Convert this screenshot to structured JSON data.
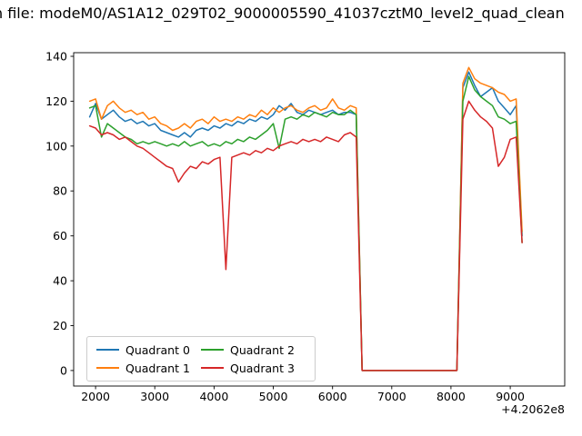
{
  "chart_data": {
    "type": "line",
    "title": "n file: modeM0/AS1A12_029T02_9000005590_41037cztM0_level2_quad_clean",
    "xlabel": "",
    "ylabel": "",
    "x_offset": "+4.2062e8",
    "xlim": [
      1630,
      9920
    ],
    "ylim": [
      -6.9,
      141.6
    ],
    "x_ticks": [
      2000,
      3000,
      4000,
      5000,
      6000,
      7000,
      8000,
      9000
    ],
    "y_ticks": [
      0,
      20,
      40,
      60,
      80,
      100,
      120,
      140
    ],
    "grid": false,
    "legend": {
      "position": "lower left",
      "ncols": 2
    },
    "x": [
      1900,
      2000,
      2100,
      2200,
      2300,
      2400,
      2500,
      2600,
      2700,
      2800,
      2900,
      3000,
      3100,
      3200,
      3300,
      3400,
      3500,
      3600,
      3700,
      3800,
      3900,
      4000,
      4100,
      4200,
      4300,
      4400,
      4500,
      4600,
      4700,
      4800,
      4900,
      5000,
      5100,
      5200,
      5300,
      5400,
      5500,
      5600,
      5700,
      5800,
      5900,
      6000,
      6100,
      6200,
      6300,
      6400,
      6500,
      6600,
      6700,
      6800,
      6900,
      7000,
      7100,
      7200,
      7300,
      7400,
      7500,
      7600,
      7700,
      7800,
      7900,
      8000,
      8100,
      8200,
      8300,
      8400,
      8500,
      8600,
      8700,
      8800,
      8900,
      9000,
      9100,
      9200
    ],
    "series": [
      {
        "name": "Quadrant 0",
        "color": "#1f77b4",
        "values": [
          113,
          119,
          112,
          114,
          116,
          113,
          111,
          112,
          110,
          111,
          109,
          110,
          107,
          106,
          105,
          104,
          106,
          104,
          107,
          108,
          107,
          109,
          108,
          110,
          109,
          111,
          110,
          112,
          111,
          113,
          112,
          114,
          118,
          116,
          119,
          115,
          114,
          116,
          115,
          114,
          115,
          116,
          114,
          115,
          115,
          114,
          0,
          0,
          0,
          0,
          0,
          0,
          0,
          0,
          0,
          0,
          0,
          0,
          0,
          0,
          0,
          0,
          0,
          126,
          133,
          127,
          122,
          124,
          126,
          120,
          117,
          114,
          118,
          60
        ]
      },
      {
        "name": "Quadrant 1",
        "color": "#ff7f0e",
        "values": [
          120,
          121,
          112,
          118,
          120,
          117,
          115,
          116,
          114,
          115,
          112,
          113,
          110,
          109,
          107,
          108,
          110,
          108,
          111,
          112,
          110,
          113,
          111,
          112,
          111,
          113,
          112,
          114,
          113,
          116,
          114,
          117,
          115,
          117,
          118,
          116,
          115,
          117,
          118,
          116,
          117,
          121,
          117,
          116,
          118,
          117,
          0,
          0,
          0,
          0,
          0,
          0,
          0,
          0,
          0,
          0,
          0,
          0,
          0,
          0,
          0,
          0,
          0,
          128,
          135,
          130,
          128,
          127,
          126,
          124,
          123,
          120,
          121,
          62
        ]
      },
      {
        "name": "Quadrant 2",
        "color": "#2ca02c",
        "values": [
          117,
          118,
          104,
          110,
          108,
          106,
          104,
          103,
          101,
          102,
          101,
          102,
          101,
          100,
          101,
          100,
          102,
          100,
          101,
          102,
          100,
          101,
          100,
          102,
          101,
          103,
          102,
          104,
          103,
          105,
          107,
          110,
          99,
          112,
          113,
          112,
          114,
          113,
          115,
          114,
          113,
          115,
          114,
          114,
          116,
          114,
          0,
          0,
          0,
          0,
          0,
          0,
          0,
          0,
          0,
          0,
          0,
          0,
          0,
          0,
          0,
          0,
          0,
          120,
          131,
          125,
          122,
          120,
          118,
          113,
          112,
          110,
          111,
          57
        ]
      },
      {
        "name": "Quadrant 3",
        "color": "#d62728",
        "values": [
          109,
          108,
          105,
          106,
          105,
          103,
          104,
          102,
          100,
          99,
          97,
          95,
          93,
          91,
          90,
          84,
          88,
          91,
          90,
          93,
          92,
          94,
          95,
          45,
          95,
          96,
          97,
          96,
          98,
          97,
          99,
          98,
          100,
          101,
          102,
          101,
          103,
          102,
          103,
          102,
          104,
          103,
          102,
          105,
          106,
          104,
          0,
          0,
          0,
          0,
          0,
          0,
          0,
          0,
          0,
          0,
          0,
          0,
          0,
          0,
          0,
          0,
          0,
          112,
          120,
          116,
          113,
          111,
          108,
          91,
          95,
          103,
          104,
          57
        ]
      }
    ]
  }
}
